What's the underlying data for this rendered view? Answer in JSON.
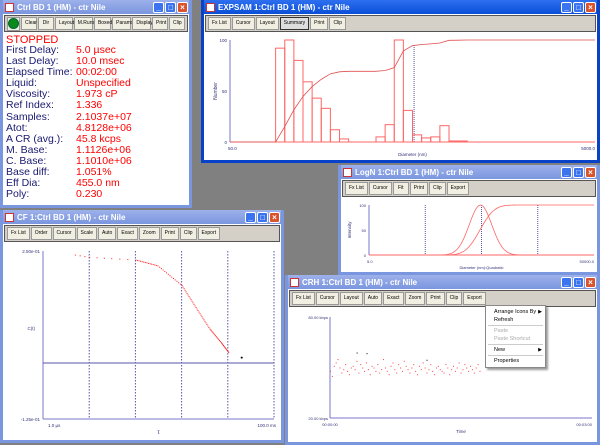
{
  "colors": {
    "desktop": "#808080",
    "label": "#1a1a70",
    "value": "#ff0000",
    "series": "#ff6666",
    "axis": "#6666bb"
  },
  "ctrl": {
    "title": "Ctrl BD 1 (HM) - ctr Nile",
    "toolbar": [
      "Clear",
      "Dir",
      "Layout",
      "M.Runs",
      "Boxed",
      "Params",
      "Display",
      "Print",
      "Clip"
    ],
    "status": "STOPPED",
    "fields": [
      {
        "label": "First Delay:",
        "value": "5.0 µsec"
      },
      {
        "label": "Last Delay:",
        "value": "10.0 msec"
      },
      {
        "label": "Elapsed Time:",
        "value": "00:02:00"
      },
      {
        "label": "Liquid:",
        "value": "Unspecified"
      },
      {
        "label": "Viscosity:",
        "value": "1.973 cP"
      },
      {
        "label": "Ref Index:",
        "value": "1.336"
      },
      {
        "label": "Samples:",
        "value": "2.1037e+07"
      },
      {
        "label": "Atot:",
        "value": "4.8128e+06"
      },
      {
        "label": "A CR (avg.):",
        "value": "45.8 kcps"
      },
      {
        "label": "M. Base:",
        "value": "1.1126e+06"
      },
      {
        "label": "C. Base:",
        "value": "1.1010e+06"
      },
      {
        "label": "Base diff:",
        "value": "1.051%"
      },
      {
        "label": "Eff Dia:",
        "value": "455.0 nm"
      },
      {
        "label": "Poly:",
        "value": "0.230"
      }
    ]
  },
  "expsam": {
    "title": "EXPSAM 1:Ctrl BD 1 (HM) - ctr Nile",
    "toolbar": [
      "Fx List",
      "Cursor",
      "Layout",
      "Summary",
      "Print",
      "Clip"
    ],
    "pressed": "Summary"
  },
  "logn": {
    "title": "LogN 1:Ctrl BD 1 (HM) - ctr Nile",
    "toolbar": [
      "Fx List",
      "Cursor",
      "Fit",
      "Print",
      "Clip",
      "Export"
    ]
  },
  "cf": {
    "title": "CF 1:Ctrl BD 1 (HM) - ctr Nile",
    "toolbar": [
      "Fx List",
      "Order",
      "Cursor",
      "Scale",
      "Auto",
      "Exact",
      "Zoom",
      "Print",
      "Clip",
      "Export"
    ]
  },
  "crh": {
    "title": "CRH 1:Ctrl BD 1 (HM) - ctr Nile",
    "toolbar": [
      "Fx List",
      "Cursor",
      "Layout",
      "Auto",
      "Exact",
      "Zoom",
      "Print",
      "Clip",
      "Export"
    ],
    "context_menu": [
      {
        "label": "Arrange Icons By",
        "submenu": true
      },
      {
        "label": "Refresh"
      },
      {
        "sep": true
      },
      {
        "label": "Paste",
        "disabled": true
      },
      {
        "label": "Paste Shortcut",
        "disabled": true
      },
      {
        "sep": true
      },
      {
        "label": "New",
        "submenu": true
      },
      {
        "sep": true
      },
      {
        "label": "Properties"
      }
    ]
  },
  "chart_data": [
    {
      "id": "expsam",
      "type": "bar",
      "xscale": "log",
      "xlim": [
        50,
        5000
      ],
      "ylim": [
        0,
        100
      ],
      "xlabel": "Diameter (nm)",
      "ylabel": "Number",
      "xtick_labels": [
        "50.0",
        "5000.0"
      ],
      "ytick_labels": [
        "100",
        "50",
        "0"
      ],
      "bin_count": 40,
      "values": [
        0,
        0,
        0,
        0,
        0,
        92,
        100,
        80,
        59,
        43,
        33,
        12,
        3,
        0,
        0,
        0,
        5,
        17,
        100,
        31,
        7,
        4,
        5,
        16,
        1,
        1,
        0,
        0,
        0,
        0,
        0,
        0,
        0,
        0,
        0,
        0,
        0,
        0,
        0,
        0
      ],
      "cumulative": true,
      "marker_x": 510
    },
    {
      "id": "logn",
      "type": "line",
      "xscale": "log",
      "xlim": [
        5,
        50000
      ],
      "ylim": [
        0,
        100
      ],
      "xlabel": "Diameter (nm):Quadratic",
      "ylabel": "Intensity",
      "xtick_labels": [
        "5.0",
        "50000.0"
      ],
      "ytick_labels": [
        "100",
        "50",
        "0"
      ],
      "lognormal": {
        "peak_nm": 480,
        "sigma_decades": 0.2
      },
      "cumulative": true,
      "grid_x": [
        50,
        500,
        5000
      ]
    },
    {
      "id": "cf",
      "type": "scatter",
      "xscale": "log",
      "xlim": [
        1e-06,
        0.1
      ],
      "ylim": [
        -0.125,
        0.25
      ],
      "xlabel": "τ",
      "ylabel": "C(t)",
      "xtick_labels": [
        "1.0 µs",
        "100.0 ms"
      ],
      "ytick_labels": [
        "2.50e-01",
        "-1.25e-01"
      ],
      "grid_x": [
        1e-05,
        0.0001,
        0.001,
        0.01,
        0.1
      ],
      "points": [
        [
          4.9e-06,
          0.242
        ],
        [
          1e-05,
          0.237
        ],
        [
          3e-05,
          0.234
        ],
        [
          0.0001,
          0.231
        ],
        [
          0.0003,
          0.218
        ],
        [
          0.001,
          0.174
        ],
        [
          0.002,
          0.125
        ],
        [
          0.004,
          0.077
        ],
        [
          0.007,
          0.047
        ],
        [
          0.0105,
          0.023
        ]
      ],
      "extra_point": [
        0.02,
        0.012
      ]
    },
    {
      "id": "crh",
      "type": "scatter",
      "xlim": [
        0,
        180
      ],
      "ylim": [
        20,
        80
      ],
      "xlabel": "Time",
      "ytick_labels": [
        "80.00 kbps",
        "20.00 kbps"
      ],
      "xtick_labels": [
        "00:00:00",
        "00:03:00"
      ],
      "t_step": 1.3,
      "values": [
        48,
        45,
        51,
        53,
        55,
        50,
        47,
        49,
        52,
        48,
        46,
        50,
        51,
        49,
        54,
        47,
        52,
        50,
        48,
        53,
        49,
        46,
        51,
        50,
        48,
        52,
        47,
        49,
        55,
        50,
        48,
        46,
        51,
        53,
        49,
        47,
        52,
        50,
        48,
        54,
        51,
        49,
        47,
        50,
        52,
        48,
        46,
        51,
        49,
        53,
        50,
        47,
        49,
        52,
        48,
        46,
        50,
        51,
        49,
        48,
        47,
        52,
        50,
        46,
        49,
        51,
        48,
        50,
        53,
        47,
        49,
        52,
        50,
        48,
        51,
        49,
        47,
        50,
        52,
        48
      ],
      "black_points": [
        [
          18.3,
          58.9
        ],
        [
          25.1,
          58.5
        ],
        [
          66.3,
          54.6
        ]
      ]
    }
  ]
}
